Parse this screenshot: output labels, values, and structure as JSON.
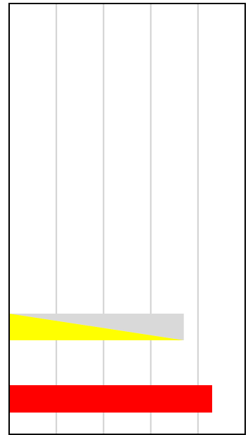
{
  "chart_data": {
    "type": "bar",
    "orientation": "horizontal",
    "title": "",
    "xlabel": "",
    "ylabel": "",
    "xlim": [
      0,
      5
    ],
    "grid": true,
    "grid_color": "#d0d0d0",
    "axis_color": "#000000",
    "background": "#ffffff",
    "bars": [
      {
        "value": 3.7,
        "fill": "split-diagonal",
        "colors": [
          "#d9d9d9",
          "#ffff00"
        ]
      },
      {
        "value": 4.3,
        "fill": "solid",
        "colors": [
          "#ff0000"
        ]
      }
    ]
  }
}
